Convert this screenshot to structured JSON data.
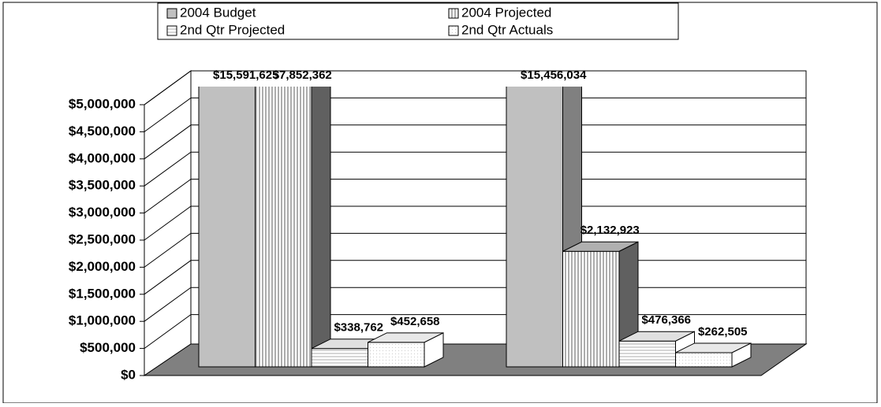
{
  "chart_data": {
    "type": "bar3d",
    "categories": [
      null,
      null
    ],
    "series": [
      {
        "name": "2004 Budget",
        "color": "#c0c0c0",
        "values": [
          15591625,
          15456034
        ],
        "value_labels": [
          "$15,591,625",
          "$15,456,034"
        ]
      },
      {
        "name": "2004 Projected",
        "color": "#a0a0a0",
        "values": [
          7852362,
          2132923
        ],
        "value_labels": [
          "$7,852,362",
          "$2,132,923"
        ]
      },
      {
        "name": "2nd Qtr Projected",
        "color": "#ffffff",
        "values": [
          338762,
          476366
        ],
        "value_labels": [
          "$338,762",
          "$476,366"
        ]
      },
      {
        "name": "2nd Qtr Actuals",
        "color": "#ffffff",
        "values": [
          452658,
          262505
        ],
        "value_labels": [
          "$452,658",
          "$262,505"
        ]
      }
    ],
    "ylim": [
      0,
      5000000
    ],
    "yticks": [
      {
        "value": 0,
        "label": "$0"
      },
      {
        "value": 500000,
        "label": "$500,000"
      },
      {
        "value": 1000000,
        "label": "$1,000,000"
      },
      {
        "value": 1500000,
        "label": "$1,500,000"
      },
      {
        "value": 2000000,
        "label": "$2,000,000"
      },
      {
        "value": 2500000,
        "label": "$2,500,000"
      },
      {
        "value": 3000000,
        "label": "$3,000,000"
      },
      {
        "value": 3500000,
        "label": "$3,500,000"
      },
      {
        "value": 4000000,
        "label": "$4,000,000"
      },
      {
        "value": 4500000,
        "label": "$4,500,000"
      },
      {
        "value": 5000000,
        "label": "$5,000,000"
      }
    ],
    "grid": true,
    "legend": "top"
  }
}
